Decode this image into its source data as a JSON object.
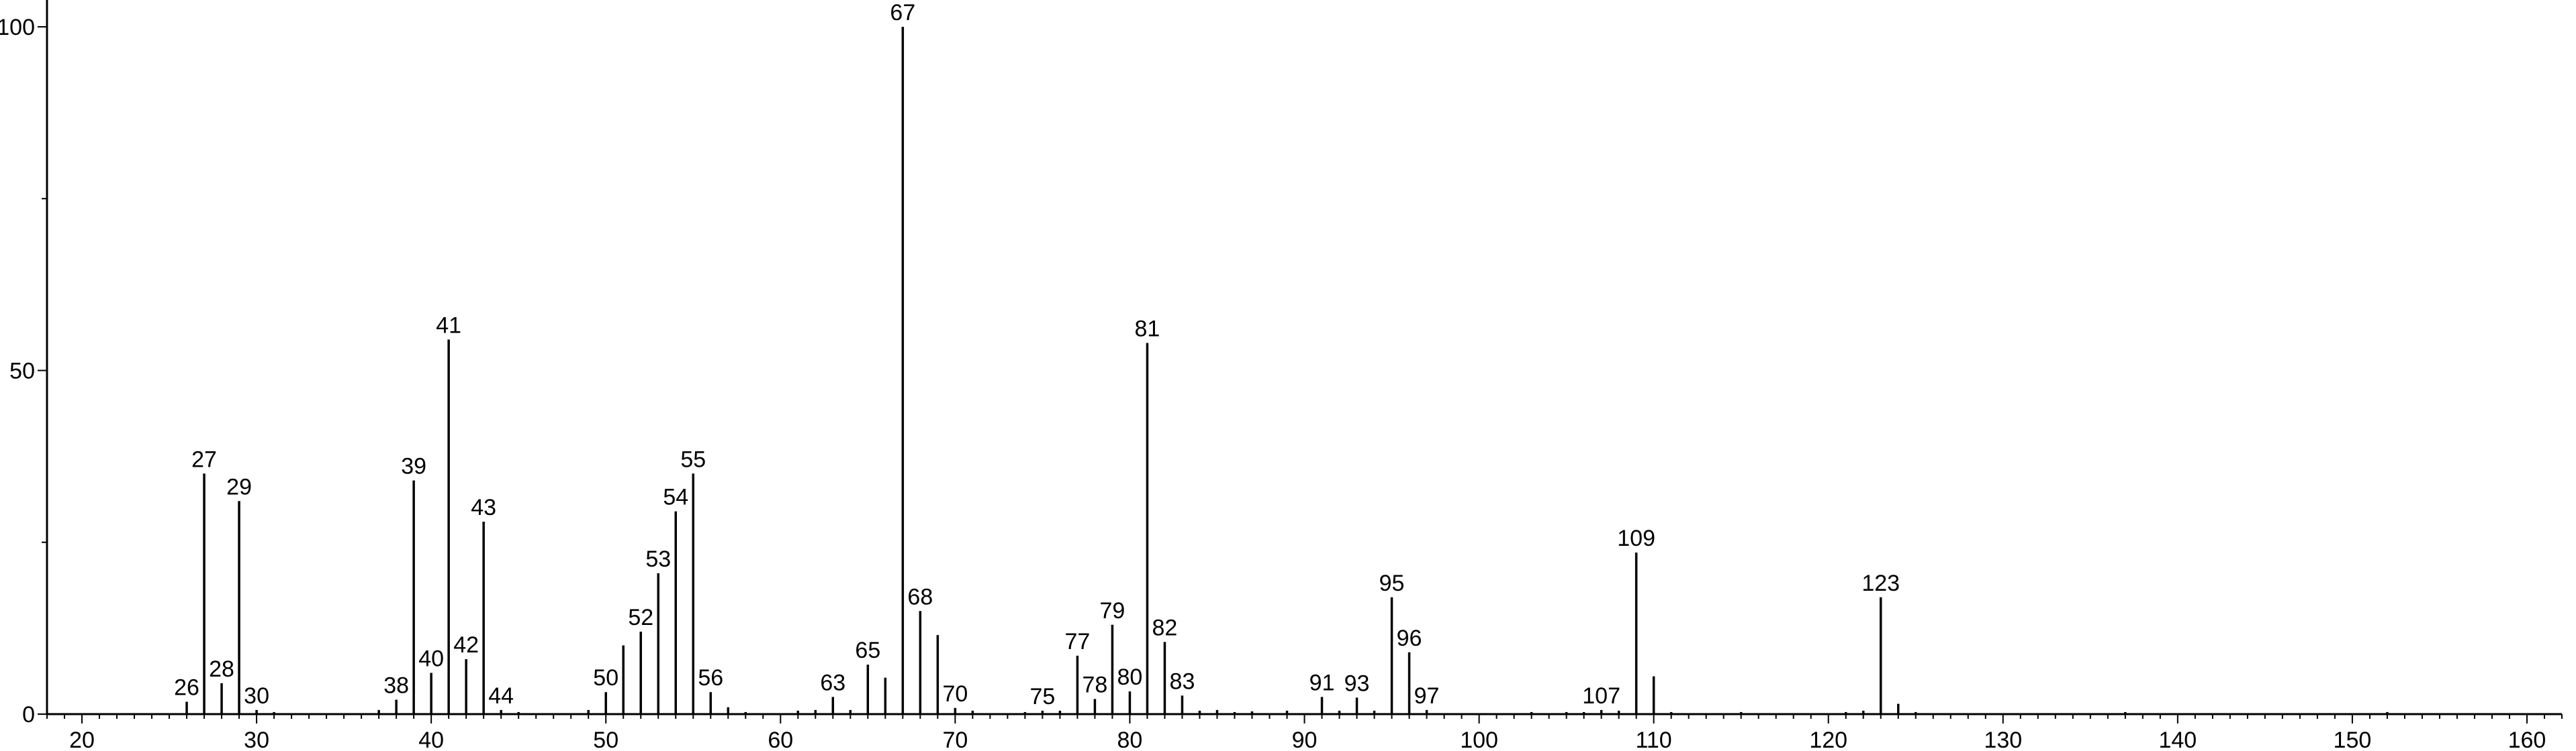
{
  "chart_data": {
    "type": "bar",
    "title": "",
    "xlabel": "",
    "ylabel": "",
    "xlim": [
      18,
      162
    ],
    "ylim": [
      0,
      100
    ],
    "x_ticks": [
      20,
      30,
      40,
      50,
      60,
      70,
      80,
      90,
      100,
      110,
      120,
      130,
      140,
      150,
      160
    ],
    "y_ticks": [
      0,
      50,
      100
    ],
    "grid": false,
    "peaks": [
      {
        "x": 26,
        "y": 1.8,
        "label": "26"
      },
      {
        "x": 27,
        "y": 35,
        "label": "27"
      },
      {
        "x": 28,
        "y": 4.5,
        "label": "28"
      },
      {
        "x": 29,
        "y": 31,
        "label": "29"
      },
      {
        "x": 30,
        "y": 0.6,
        "label": "30"
      },
      {
        "x": 31,
        "y": 0.3,
        "label": ""
      },
      {
        "x": 37,
        "y": 0.6,
        "label": ""
      },
      {
        "x": 38,
        "y": 2.1,
        "label": "38"
      },
      {
        "x": 39,
        "y": 34,
        "label": "39"
      },
      {
        "x": 40,
        "y": 6,
        "label": "40"
      },
      {
        "x": 41,
        "y": 54.5,
        "label": "41"
      },
      {
        "x": 42,
        "y": 8,
        "label": "42"
      },
      {
        "x": 43,
        "y": 28,
        "label": "43"
      },
      {
        "x": 44,
        "y": 0.6,
        "label": "44"
      },
      {
        "x": 45,
        "y": 0.3,
        "label": ""
      },
      {
        "x": 49,
        "y": 0.6,
        "label": ""
      },
      {
        "x": 50,
        "y": 3.2,
        "label": "50"
      },
      {
        "x": 51,
        "y": 10,
        "label": ""
      },
      {
        "x": 52,
        "y": 12,
        "label": "52"
      },
      {
        "x": 53,
        "y": 20.5,
        "label": "53"
      },
      {
        "x": 54,
        "y": 29.5,
        "label": "54"
      },
      {
        "x": 55,
        "y": 35,
        "label": "55"
      },
      {
        "x": 56,
        "y": 3.2,
        "label": "56"
      },
      {
        "x": 57,
        "y": 1,
        "label": ""
      },
      {
        "x": 58,
        "y": 0.3,
        "label": ""
      },
      {
        "x": 61,
        "y": 0.5,
        "label": ""
      },
      {
        "x": 62,
        "y": 0.6,
        "label": ""
      },
      {
        "x": 63,
        "y": 2.5,
        "label": "63"
      },
      {
        "x": 64,
        "y": 0.6,
        "label": ""
      },
      {
        "x": 65,
        "y": 7.2,
        "label": "65"
      },
      {
        "x": 66,
        "y": 5.3,
        "label": ""
      },
      {
        "x": 67,
        "y": 100,
        "label": "67"
      },
      {
        "x": 68,
        "y": 15,
        "label": "68"
      },
      {
        "x": 69,
        "y": 11.5,
        "label": ""
      },
      {
        "x": 70,
        "y": 0.9,
        "label": "70"
      },
      {
        "x": 71,
        "y": 0.5,
        "label": ""
      },
      {
        "x": 74,
        "y": 0.3,
        "label": ""
      },
      {
        "x": 75,
        "y": 0.5,
        "label": "75"
      },
      {
        "x": 76,
        "y": 0.5,
        "label": ""
      },
      {
        "x": 77,
        "y": 8.5,
        "label": "77"
      },
      {
        "x": 78,
        "y": 2.2,
        "label": "78"
      },
      {
        "x": 79,
        "y": 13,
        "label": "79"
      },
      {
        "x": 80,
        "y": 3.3,
        "label": "80"
      },
      {
        "x": 81,
        "y": 54,
        "label": "81"
      },
      {
        "x": 82,
        "y": 10.5,
        "label": "82"
      },
      {
        "x": 83,
        "y": 2.7,
        "label": "83"
      },
      {
        "x": 84,
        "y": 0.5,
        "label": ""
      },
      {
        "x": 85,
        "y": 0.6,
        "label": ""
      },
      {
        "x": 86,
        "y": 0.3,
        "label": ""
      },
      {
        "x": 87,
        "y": 0.4,
        "label": ""
      },
      {
        "x": 89,
        "y": 0.5,
        "label": ""
      },
      {
        "x": 91,
        "y": 2.5,
        "label": "91"
      },
      {
        "x": 92,
        "y": 0.5,
        "label": ""
      },
      {
        "x": 93,
        "y": 2.4,
        "label": "93"
      },
      {
        "x": 94,
        "y": 0.5,
        "label": ""
      },
      {
        "x": 95,
        "y": 17,
        "label": "95"
      },
      {
        "x": 96,
        "y": 9,
        "label": "96"
      },
      {
        "x": 97,
        "y": 0.6,
        "label": "97"
      },
      {
        "x": 103,
        "y": 0.3,
        "label": ""
      },
      {
        "x": 105,
        "y": 0.3,
        "label": ""
      },
      {
        "x": 106,
        "y": 0.3,
        "label": ""
      },
      {
        "x": 107,
        "y": 0.6,
        "label": "107"
      },
      {
        "x": 108,
        "y": 0.5,
        "label": ""
      },
      {
        "x": 109,
        "y": 23.5,
        "label": "109"
      },
      {
        "x": 110,
        "y": 5.5,
        "label": ""
      },
      {
        "x": 111,
        "y": 0.3,
        "label": ""
      },
      {
        "x": 115,
        "y": 0.3,
        "label": ""
      },
      {
        "x": 121,
        "y": 0.3,
        "label": ""
      },
      {
        "x": 122,
        "y": 0.5,
        "label": ""
      },
      {
        "x": 123,
        "y": 17,
        "label": "123"
      },
      {
        "x": 124,
        "y": 1.5,
        "label": ""
      },
      {
        "x": 125,
        "y": 0.3,
        "label": ""
      },
      {
        "x": 137,
        "y": 0.3,
        "label": ""
      },
      {
        "x": 152,
        "y": 0.3,
        "label": ""
      }
    ]
  }
}
